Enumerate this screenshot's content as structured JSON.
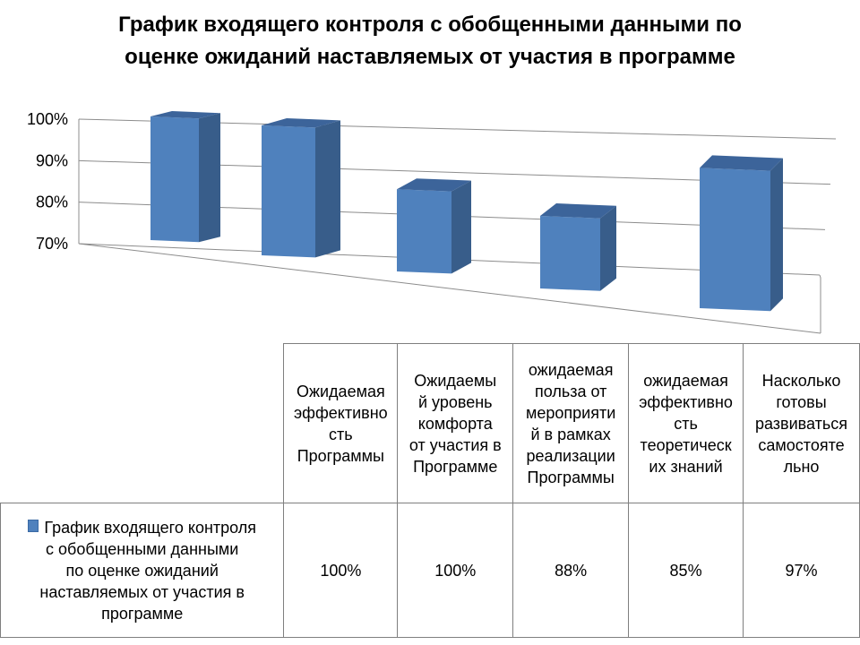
{
  "chart_data": {
    "type": "bar",
    "title_lines": [
      "График входящего контроля с обобщенными данными по",
      "оценке ожиданий наставляемых от участия в программе"
    ],
    "categories": [
      "Ожидаемая эффективность Программы",
      "Ожидаемый уровень комфорта от участия в Программе",
      "ожидаемая польза от мероприятий в рамках реализации Программы",
      "ожидаемая эффективность теоретических знаний",
      "Насколько готовы развиваться самостоятельно"
    ],
    "category_lines": [
      [
        "Ожидаемая",
        "эффективно",
        "сть",
        "Программы"
      ],
      [
        "Ожидаемы",
        "й уровень",
        "комфорта",
        "от участия в",
        "Программе"
      ],
      [
        "ожидаемая",
        "польза от",
        "мероприяти",
        "й в рамках",
        "реализации",
        "Программы"
      ],
      [
        "ожидаемая",
        "эффективно",
        "сть",
        "теоретическ",
        "их знаний"
      ],
      [
        "Насколько",
        "готовы",
        "развиваться",
        "самостояте",
        "льно"
      ]
    ],
    "series": [
      {
        "name": "График входящего контроля с обобщенными данными по оценке ожиданий наставляемых от участия в программе",
        "name_lines": [
          "График входящего контроля",
          "с обобщенными данными",
          "по оценке ожиданий",
          "наставляемых от участия в",
          "программе"
        ],
        "values": [
          1.0,
          1.0,
          0.88,
          0.85,
          0.97
        ],
        "value_labels": [
          "100%",
          "100%",
          "88%",
          "85%",
          "97%"
        ]
      }
    ],
    "ylim": [
      0.7,
      1.0
    ],
    "yticks": [
      0.7,
      0.8,
      0.9,
      1.0
    ],
    "ytick_labels": [
      "70%",
      "80%",
      "90%",
      "100%"
    ],
    "grid": true,
    "legend": "data-table",
    "colors": {
      "bar_front": "#4f81bd",
      "bar_side": "#385d8a",
      "bar_top": "#3c649a",
      "grid": "#8c8c8c"
    }
  }
}
